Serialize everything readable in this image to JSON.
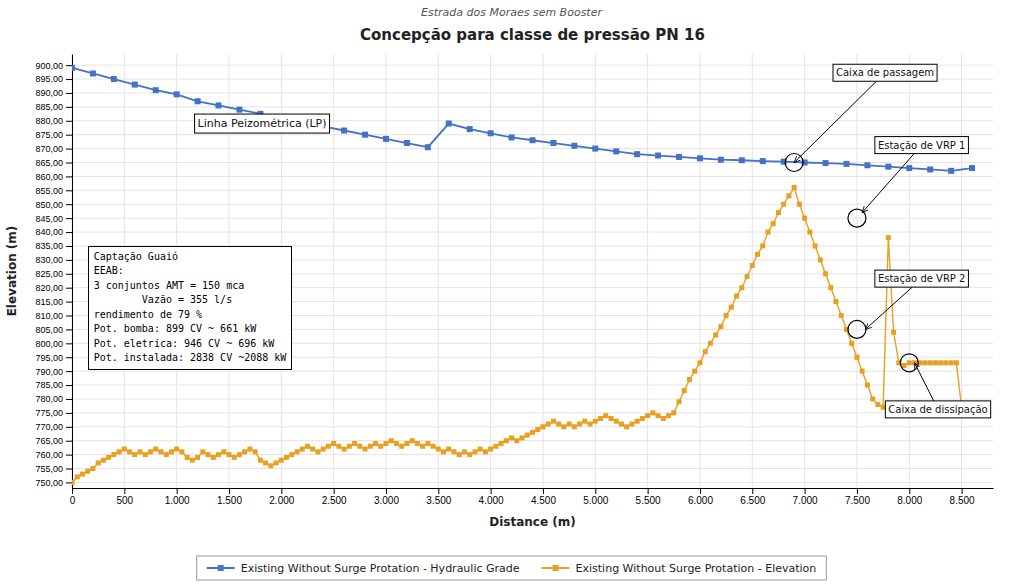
{
  "chart_data": {
    "type": "line",
    "title": "Concepção para classe de pressão PN 16",
    "subtitle": "Estrada dos Moraes sem Booster",
    "x_label": "Distance (m)",
    "y_label": "Elevation (m)",
    "xlim": [
      0,
      8800
    ],
    "ylim": [
      748,
      904
    ],
    "xticks": [
      0,
      500,
      {
        "value": 1000,
        "label": "1.000"
      },
      {
        "value": 1500,
        "label": "1.500"
      },
      {
        "value": 2000,
        "label": "2.000"
      },
      {
        "value": 2500,
        "label": "2.500"
      },
      {
        "value": 3000,
        "label": "3.000"
      },
      {
        "value": 3500,
        "label": "3.500"
      },
      {
        "value": 4000,
        "label": "4.000"
      },
      {
        "value": 4500,
        "label": "4.500"
      },
      {
        "value": 5000,
        "label": "5.000"
      },
      {
        "value": 5500,
        "label": "5.500"
      },
      {
        "value": 6000,
        "label": "6.000"
      },
      {
        "value": 6500,
        "label": "6.500"
      },
      {
        "value": 7000,
        "label": "7.000"
      },
      {
        "value": 7500,
        "label": "7.500"
      },
      {
        "value": 8000,
        "label": "8.000"
      },
      {
        "value": 8500,
        "label": "8.500"
      }
    ],
    "yticks": [
      {
        "value": 750,
        "label": "750,00"
      },
      {
        "value": 755,
        "label": "755,00"
      },
      {
        "value": 760,
        "label": "760,00"
      },
      {
        "value": 765,
        "label": "765,00"
      },
      {
        "value": 770,
        "label": "770,00"
      },
      {
        "value": 775,
        "label": "775,00"
      },
      {
        "value": 780,
        "label": "780,00"
      },
      {
        "value": 785,
        "label": "785,00"
      },
      {
        "value": 790,
        "label": "790,00"
      },
      {
        "value": 795,
        "label": "795,00"
      },
      {
        "value": 800,
        "label": "800,00"
      },
      {
        "value": 805,
        "label": "805,00"
      },
      {
        "value": 810,
        "label": "810,00"
      },
      {
        "value": 815,
        "label": "815,00"
      },
      {
        "value": 820,
        "label": "820,00"
      },
      {
        "value": 825,
        "label": "825,00"
      },
      {
        "value": 830,
        "label": "830,00"
      },
      {
        "value": 835,
        "label": "835,00"
      },
      {
        "value": 840,
        "label": "840,00"
      },
      {
        "value": 845,
        "label": "845,00"
      },
      {
        "value": 850,
        "label": "850,00"
      },
      {
        "value": 855,
        "label": "855,00"
      },
      {
        "value": 860,
        "label": "860,00"
      },
      {
        "value": 865,
        "label": "865,00"
      },
      {
        "value": 870,
        "label": "870,00"
      },
      {
        "value": 875,
        "label": "875,00"
      },
      {
        "value": 880,
        "label": "880,00"
      },
      {
        "value": 885,
        "label": "885,00"
      },
      {
        "value": 890,
        "label": "890,00"
      },
      {
        "value": 895,
        "label": "895,00"
      },
      {
        "value": 900,
        "label": "900,00"
      }
    ],
    "grid": true,
    "legend": "bottom",
    "annotations": [
      "Captação Guaió\nEEAB:\n3 conjuntos AMT = 150 mca\n        Vazão = 355 l/s\nrendimento de 79 %\nPot. bomba: 899 CV ~ 661 kW\nPot. eletrica: 946 CV ~ 696 kW\nPot. instalada: 2838 CV ~2088 kW",
      "Linha Peizométrica (LP)",
      "Caixa de passagem",
      "Estação de VRP 1",
      "Estação de VRP 2",
      "Caixa de dissipação"
    ],
    "series": [
      {
        "name": "Existing Without Surge Protation - Hydraulic Grade",
        "color": "#4472c4",
        "marker": "square",
        "line_style": "solid",
        "x": [
          0,
          200,
          400,
          600,
          800,
          1000,
          1200,
          1400,
          1600,
          1800,
          2000,
          2200,
          2400,
          2600,
          2800,
          3000,
          3200,
          3400,
          3600,
          3800,
          4000,
          4200,
          4400,
          4600,
          4800,
          5000,
          5200,
          5400,
          5600,
          5800,
          6000,
          6200,
          6400,
          6600,
          6800,
          7000,
          7200,
          7400,
          7600,
          7800,
          8000,
          8200,
          8400,
          8600
        ],
        "values": [
          899,
          897,
          895,
          893,
          891,
          889.5,
          887,
          885.5,
          884,
          882.5,
          881,
          879.5,
          878,
          876.5,
          875,
          873.5,
          872,
          870.5,
          879,
          877,
          875.5,
          874,
          873,
          872,
          871,
          870,
          869,
          868,
          867.5,
          867,
          866.5,
          866,
          865.8,
          865.5,
          865.3,
          865,
          864.8,
          864.5,
          864,
          863.5,
          863,
          862.5,
          862,
          863
        ]
      },
      {
        "name": "Existing Without Surge Protation - Elevation",
        "color": "#e8a020",
        "marker": "square",
        "line_style": "solid",
        "x": [
          0,
          50,
          100,
          150,
          200,
          250,
          300,
          350,
          400,
          450,
          500,
          550,
          600,
          650,
          700,
          750,
          800,
          850,
          900,
          950,
          1000,
          1050,
          1100,
          1150,
          1200,
          1250,
          1300,
          1350,
          1400,
          1450,
          1500,
          1550,
          1600,
          1650,
          1700,
          1750,
          1800,
          1850,
          1900,
          1950,
          2000,
          2050,
          2100,
          2150,
          2200,
          2250,
          2300,
          2350,
          2400,
          2450,
          2500,
          2550,
          2600,
          2650,
          2700,
          2750,
          2800,
          2850,
          2900,
          2950,
          3000,
          3050,
          3100,
          3150,
          3200,
          3250,
          3300,
          3350,
          3400,
          3450,
          3500,
          3550,
          3600,
          3650,
          3700,
          3750,
          3800,
          3850,
          3900,
          3950,
          4000,
          4050,
          4100,
          4150,
          4200,
          4250,
          4300,
          4350,
          4400,
          4450,
          4500,
          4550,
          4600,
          4650,
          4700,
          4750,
          4800,
          4850,
          4900,
          4950,
          5000,
          5050,
          5100,
          5150,
          5200,
          5250,
          5300,
          5350,
          5400,
          5450,
          5500,
          5550,
          5600,
          5650,
          5700,
          5750,
          5800,
          5850,
          5900,
          5950,
          6000,
          6050,
          6100,
          6150,
          6200,
          6250,
          6300,
          6350,
          6400,
          6450,
          6500,
          6550,
          6600,
          6650,
          6700,
          6750,
          6800,
          6850,
          6900,
          6950,
          7000,
          7050,
          7100,
          7150,
          7200,
          7250,
          7300,
          7350,
          7400,
          7450,
          7500,
          7550,
          7600,
          7650,
          7700,
          7750,
          7800,
          7850,
          7900,
          7950,
          8000,
          8050,
          8100,
          8150,
          8200,
          8250,
          8300,
          8350,
          8400,
          8450,
          8500,
          8550
        ],
        "values": [
          750,
          752,
          753,
          754,
          755,
          757,
          758,
          759,
          760,
          761,
          762,
          761,
          760,
          761,
          760,
          761,
          762,
          761,
          760,
          761,
          762,
          761,
          759,
          758,
          759,
          761,
          760,
          759,
          760,
          761,
          760,
          759,
          760,
          761,
          762,
          761,
          758,
          757,
          756,
          757,
          758,
          759,
          760,
          761,
          762,
          763,
          762,
          761,
          762,
          763,
          764,
          763,
          762,
          763,
          764,
          763,
          762,
          763,
          764,
          763,
          764,
          765,
          764,
          763,
          764,
          765,
          764,
          763,
          764,
          763,
          762,
          761,
          762,
          761,
          760,
          761,
          760,
          761,
          762,
          761,
          762,
          763,
          764,
          765,
          766,
          765,
          766,
          767,
          768,
          769,
          770,
          771,
          772,
          771,
          770,
          771,
          770,
          771,
          772,
          771,
          772,
          773,
          774,
          773,
          772,
          771,
          770,
          771,
          772,
          773,
          774,
          775,
          774,
          773,
          774,
          775,
          779,
          783,
          787,
          790,
          793,
          797,
          800,
          803,
          806,
          810,
          813,
          817,
          820,
          824,
          828,
          832,
          835,
          840,
          843,
          847,
          850,
          853,
          856,
          850,
          845,
          840,
          835,
          830,
          825,
          820,
          815,
          810,
          805,
          800,
          795,
          790,
          785,
          780,
          778,
          777,
          838,
          804,
          793,
          792,
          793,
          793,
          793,
          793,
          793,
          793,
          793,
          793,
          793,
          793,
          777,
          777
        ]
      }
    ]
  }
}
